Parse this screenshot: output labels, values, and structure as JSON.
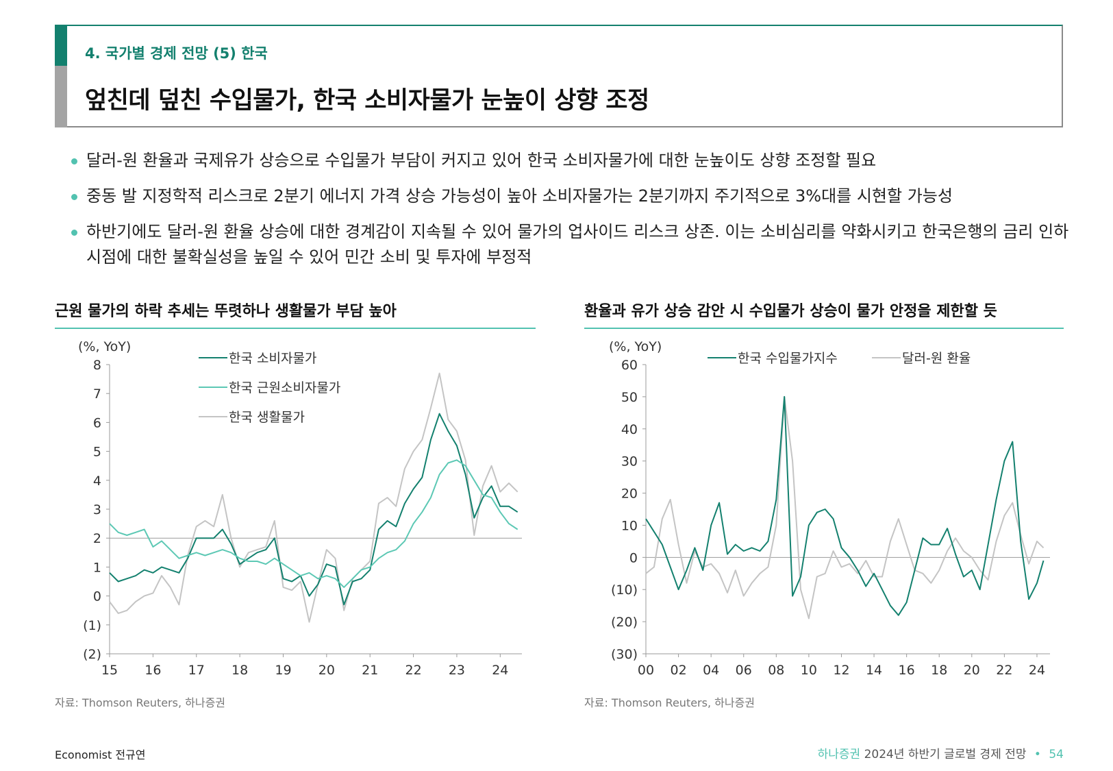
{
  "header": {
    "section_label": "4. 국가별 경제 전망 (5) 한국",
    "title": "엎친데 덮친 수입물가, 한국 소비자물가 눈높이 상향 조정"
  },
  "bullets": [
    "달러-원 환율과 국제유가 상승으로 수입물가 부담이 커지고 있어 한국 소비자물가에 대한 눈높이도 상향 조정할 필요",
    "중동 발 지정학적 리스크로 2분기 에너지 가격 상승 가능성이 높아 소비자물가는 2분기까지 주기적으로 3%대를 시현할 가능성",
    "하반기에도 달러-원 환율 상승에 대한 경계감이 지속될 수 있어 물가의 업사이드 리스크 상존. 이는 소비심리를 약화시키고 한국은행의 금리 인하 시점에 대한 불확실성을 높일 수 있어 민간 소비 및 투자에 부정적"
  ],
  "colors": {
    "dark_teal": "#13806e",
    "light_teal": "#5cc8b4",
    "grey": "#c4c4c4",
    "accent": "#52c2b0"
  },
  "chart_data": [
    {
      "type": "line",
      "title": "근원 물가의 하락 추세는 뚜렷하나 생활물가 부담 높아",
      "unit_label": "(%, YoY)",
      "xlim": [
        2015,
        2024.5
      ],
      "x_tick_values": [
        2015,
        2016,
        2017,
        2018,
        2019,
        2020,
        2021,
        2022,
        2023,
        2024
      ],
      "x_tick_labels": [
        "15",
        "16",
        "17",
        "18",
        "19",
        "20",
        "21",
        "22",
        "23",
        "24"
      ],
      "ylim": [
        -2,
        8
      ],
      "y_tick_values": [
        8,
        7,
        6,
        5,
        4,
        3,
        2,
        1,
        0,
        -1,
        -2
      ],
      "y_tick_labels": [
        "8",
        "7",
        "6",
        "5",
        "4",
        "3",
        "2",
        "1",
        "0",
        "(1)",
        "(2)"
      ],
      "reference_line": 2,
      "legend": [
        "한국 소비자물가",
        "한국 근원소비자물가",
        "한국 생활물가"
      ],
      "series": [
        {
          "name": "한국 소비자물가",
          "color": "#13806e",
          "x": [
            2015.0,
            2015.2,
            2015.4,
            2015.6,
            2015.8,
            2016.0,
            2016.2,
            2016.4,
            2016.6,
            2016.8,
            2017.0,
            2017.2,
            2017.4,
            2017.6,
            2017.8,
            2018.0,
            2018.2,
            2018.4,
            2018.6,
            2018.8,
            2019.0,
            2019.2,
            2019.4,
            2019.6,
            2019.8,
            2020.0,
            2020.2,
            2020.4,
            2020.6,
            2020.8,
            2021.0,
            2021.2,
            2021.4,
            2021.6,
            2021.8,
            2022.0,
            2022.2,
            2022.4,
            2022.6,
            2022.8,
            2023.0,
            2023.2,
            2023.4,
            2023.6,
            2023.8,
            2024.0,
            2024.2,
            2024.4
          ],
          "values": [
            0.8,
            0.5,
            0.6,
            0.7,
            0.9,
            0.8,
            1.0,
            0.9,
            0.8,
            1.3,
            2.0,
            2.0,
            2.0,
            2.3,
            1.8,
            1.1,
            1.3,
            1.5,
            1.6,
            2.0,
            0.6,
            0.5,
            0.7,
            0.0,
            0.4,
            1.1,
            1.0,
            -0.3,
            0.5,
            0.6,
            0.9,
            2.3,
            2.6,
            2.4,
            3.2,
            3.7,
            4.1,
            5.4,
            6.3,
            5.7,
            5.2,
            4.2,
            2.7,
            3.4,
            3.8,
            3.1,
            3.1,
            2.9
          ]
        },
        {
          "name": "한국 근원소비자물가",
          "color": "#5cc8b4",
          "x": [
            2015.0,
            2015.2,
            2015.4,
            2015.6,
            2015.8,
            2016.0,
            2016.2,
            2016.4,
            2016.6,
            2016.8,
            2017.0,
            2017.2,
            2017.4,
            2017.6,
            2017.8,
            2018.0,
            2018.2,
            2018.4,
            2018.6,
            2018.8,
            2019.0,
            2019.2,
            2019.4,
            2019.6,
            2019.8,
            2020.0,
            2020.2,
            2020.4,
            2020.6,
            2020.8,
            2021.0,
            2021.2,
            2021.4,
            2021.6,
            2021.8,
            2022.0,
            2022.2,
            2022.4,
            2022.6,
            2022.8,
            2023.0,
            2023.2,
            2023.4,
            2023.6,
            2023.8,
            2024.0,
            2024.2,
            2024.4
          ],
          "values": [
            2.5,
            2.2,
            2.1,
            2.2,
            2.3,
            1.7,
            1.9,
            1.6,
            1.3,
            1.4,
            1.5,
            1.4,
            1.5,
            1.6,
            1.5,
            1.3,
            1.2,
            1.2,
            1.1,
            1.3,
            1.1,
            0.9,
            0.7,
            0.8,
            0.6,
            0.7,
            0.6,
            0.3,
            0.6,
            0.9,
            1.0,
            1.3,
            1.5,
            1.6,
            1.9,
            2.5,
            2.9,
            3.4,
            4.2,
            4.6,
            4.7,
            4.5,
            4.0,
            3.5,
            3.4,
            2.9,
            2.5,
            2.3
          ]
        },
        {
          "name": "한국 생활물가",
          "color": "#c4c4c4",
          "x": [
            2015.0,
            2015.2,
            2015.4,
            2015.6,
            2015.8,
            2016.0,
            2016.2,
            2016.4,
            2016.6,
            2016.8,
            2017.0,
            2017.2,
            2017.4,
            2017.6,
            2017.8,
            2018.0,
            2018.2,
            2018.4,
            2018.6,
            2018.8,
            2019.0,
            2019.2,
            2019.4,
            2019.6,
            2019.8,
            2020.0,
            2020.2,
            2020.4,
            2020.6,
            2020.8,
            2021.0,
            2021.2,
            2021.4,
            2021.6,
            2021.8,
            2022.0,
            2022.2,
            2022.4,
            2022.6,
            2022.8,
            2023.0,
            2023.2,
            2023.4,
            2023.6,
            2023.8,
            2024.0,
            2024.2,
            2024.4
          ],
          "values": [
            -0.2,
            -0.6,
            -0.5,
            -0.2,
            0.0,
            0.1,
            0.7,
            0.3,
            -0.3,
            1.4,
            2.4,
            2.6,
            2.4,
            3.5,
            2.0,
            1.0,
            1.5,
            1.6,
            1.7,
            2.6,
            0.3,
            0.2,
            0.5,
            -0.9,
            0.4,
            1.6,
            1.3,
            -0.5,
            0.6,
            0.9,
            1.2,
            3.2,
            3.4,
            3.1,
            4.4,
            5.0,
            5.4,
            6.5,
            7.7,
            6.1,
            5.7,
            4.7,
            2.1,
            3.8,
            4.5,
            3.6,
            3.9,
            3.6
          ]
        }
      ]
    },
    {
      "type": "line",
      "title": "환율과 유가 상승 감안 시 수입물가 상승이 물가 안정을 제한할 듯",
      "unit_label": "(%, YoY)",
      "xlim": [
        2000,
        2024.8
      ],
      "x_tick_values": [
        2000,
        2002,
        2004,
        2006,
        2008,
        2010,
        2012,
        2014,
        2016,
        2018,
        2020,
        2022,
        2024
      ],
      "x_tick_labels": [
        "00",
        "02",
        "04",
        "06",
        "08",
        "10",
        "12",
        "14",
        "16",
        "18",
        "20",
        "22",
        "24"
      ],
      "ylim": [
        -30,
        60
      ],
      "y_tick_values": [
        60,
        50,
        40,
        30,
        20,
        10,
        0,
        -10,
        -20,
        -30
      ],
      "y_tick_labels": [
        "60",
        "50",
        "40",
        "30",
        "20",
        "10",
        "0",
        "(10)",
        "(20)",
        "(30)"
      ],
      "reference_line": 0,
      "legend": [
        "한국 수입물가지수",
        "달러-원 환율"
      ],
      "series": [
        {
          "name": "한국 수입물가지수",
          "color": "#13806e",
          "x": [
            2000.0,
            2000.5,
            2001.0,
            2001.5,
            2002.0,
            2002.5,
            2003.0,
            2003.5,
            2004.0,
            2004.5,
            2005.0,
            2005.5,
            2006.0,
            2006.5,
            2007.0,
            2007.5,
            2008.0,
            2008.5,
            2009.0,
            2009.5,
            2010.0,
            2010.5,
            2011.0,
            2011.5,
            2012.0,
            2012.5,
            2013.0,
            2013.5,
            2014.0,
            2014.5,
            2015.0,
            2015.5,
            2016.0,
            2016.5,
            2017.0,
            2017.5,
            2018.0,
            2018.5,
            2019.0,
            2019.5,
            2020.0,
            2020.5,
            2021.0,
            2021.5,
            2022.0,
            2022.5,
            2023.0,
            2023.5,
            2024.0,
            2024.4
          ],
          "values": [
            12,
            8,
            4,
            -3,
            -10,
            -4,
            3,
            -4,
            10,
            17,
            1,
            4,
            2,
            3,
            2,
            5,
            18,
            50,
            -12,
            -6,
            10,
            14,
            15,
            12,
            3,
            0,
            -4,
            -9,
            -5,
            -10,
            -15,
            -18,
            -14,
            -4,
            6,
            4,
            4,
            9,
            1,
            -6,
            -4,
            -10,
            4,
            18,
            30,
            36,
            5,
            -13,
            -8,
            -1
          ]
        },
        {
          "name": "달러-원 환율",
          "color": "#c4c4c4",
          "x": [
            2000.0,
            2000.5,
            2001.0,
            2001.5,
            2002.0,
            2002.5,
            2003.0,
            2003.5,
            2004.0,
            2004.5,
            2005.0,
            2005.5,
            2006.0,
            2006.5,
            2007.0,
            2007.5,
            2008.0,
            2008.5,
            2009.0,
            2009.5,
            2010.0,
            2010.5,
            2011.0,
            2011.5,
            2012.0,
            2012.5,
            2013.0,
            2013.5,
            2014.0,
            2014.5,
            2015.0,
            2015.5,
            2016.0,
            2016.5,
            2017.0,
            2017.5,
            2018.0,
            2018.5,
            2019.0,
            2019.5,
            2020.0,
            2020.5,
            2021.0,
            2021.5,
            2022.0,
            2022.5,
            2023.0,
            2023.5,
            2024.0,
            2024.4
          ],
          "values": [
            -5,
            -3,
            12,
            18,
            4,
            -8,
            2,
            -3,
            -2,
            -5,
            -11,
            -4,
            -12,
            -8,
            -5,
            -3,
            10,
            50,
            30,
            -10,
            -19,
            -6,
            -5,
            2,
            -3,
            -2,
            -5,
            -1,
            -6,
            -6,
            5,
            12,
            4,
            -4,
            -5,
            -8,
            -4,
            2,
            6,
            2,
            0,
            -4,
            -7,
            5,
            13,
            17,
            7,
            -2,
            5,
            3
          ]
        }
      ]
    }
  ],
  "sources": [
    "자료: Thomson Reuters, 하나증권",
    "자료: Thomson Reuters, 하나증권"
  ],
  "footer": {
    "left": "Economist 전규연",
    "brand": "하나증권",
    "doc_title": "2024년 하반기 글로벌 경제 전망",
    "page_number": "54"
  }
}
